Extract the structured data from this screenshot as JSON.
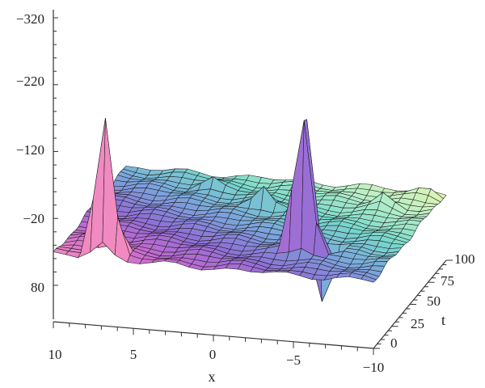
{
  "chart_data": {
    "type": "surface3d",
    "axes": {
      "x": {
        "label": "x",
        "range": [
          -10,
          10
        ],
        "tick_labels": [
          "10",
          "5",
          "0",
          "−5",
          "−10"
        ]
      },
      "t": {
        "label": "t",
        "range": [
          0,
          100
        ],
        "tick_labels": [
          "0",
          "25",
          "50",
          "75",
          "100"
        ]
      },
      "z": {
        "label": "",
        "range": [
          -320,
          80
        ],
        "inverted": true,
        "tick_labels": [
          "−320",
          "−220",
          "−120",
          "−20",
          "80"
        ]
      }
    },
    "surface": {
      "baseline_z": -20,
      "peaks": [
        {
          "x": 7,
          "t": 5,
          "z": -255
        },
        {
          "x": -4.5,
          "t": 25,
          "z": -310
        },
        {
          "x": -5.5,
          "t": 32,
          "z": 75
        },
        {
          "x": 0,
          "t": 70,
          "z": -55
        },
        {
          "x": 4,
          "t": 85,
          "z": -35
        },
        {
          "x": -7,
          "t": 80,
          "z": -40
        },
        {
          "x": -9,
          "t": 95,
          "z": -35
        }
      ]
    },
    "colormap": [
      "#f08ac0",
      "#c86ad0",
      "#8f6fd6",
      "#7aa6dc",
      "#78d8cc",
      "#b5efc8",
      "#e4f3b0"
    ]
  }
}
